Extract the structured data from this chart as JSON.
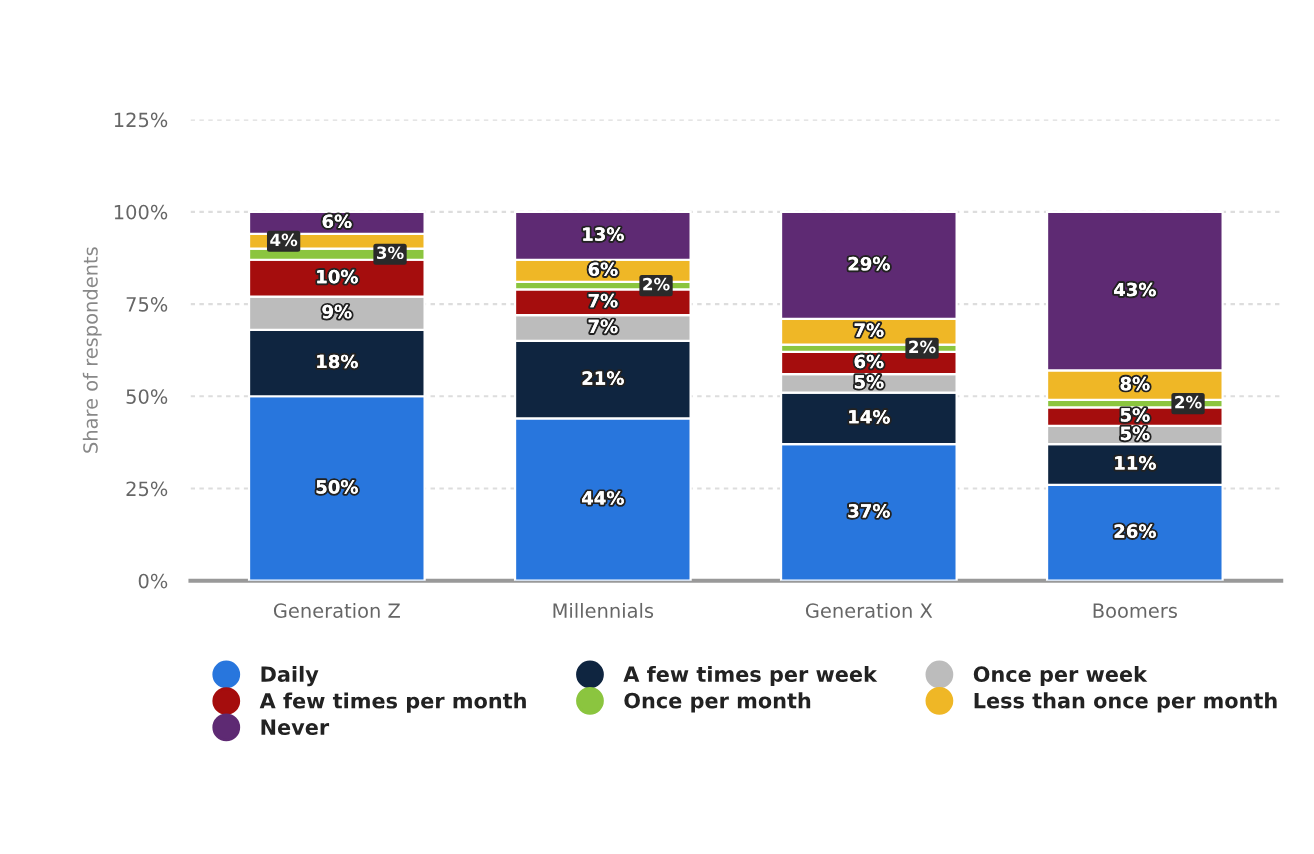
{
  "chart_data": {
    "type": "bar",
    "stacked": true,
    "ylabel": "Share of respondents",
    "categories": [
      "Generation Z",
      "Millennials",
      "Generation X",
      "Boomers"
    ],
    "series": [
      {
        "name": "Daily",
        "color": "#2876dd",
        "values": [
          50,
          44,
          37,
          26
        ],
        "value_labels": [
          "50%",
          "44%",
          "37%",
          "26%"
        ]
      },
      {
        "name": "A few times per week",
        "color": "#0f2540",
        "values": [
          18,
          21,
          14,
          11
        ],
        "value_labels": [
          "18%",
          "21%",
          "14%",
          "11%"
        ]
      },
      {
        "name": "Once per week",
        "color": "#bcbcbc",
        "values": [
          9,
          7,
          5,
          5
        ],
        "value_labels": [
          "9%",
          "7%",
          "5%",
          "5%"
        ]
      },
      {
        "name": "A few times per month",
        "color": "#a50d0d",
        "values": [
          10,
          7,
          6,
          5
        ],
        "value_labels": [
          "10%",
          "7%",
          "6%",
          "5%"
        ]
      },
      {
        "name": "Once per month",
        "color": "#8bc53f",
        "values": [
          3,
          2,
          2,
          2
        ],
        "value_labels": [
          "3%",
          "2%",
          "2%",
          "2%"
        ]
      },
      {
        "name": "Less than once per month",
        "color": "#efb726",
        "values": [
          4,
          6,
          7,
          8
        ],
        "value_labels": [
          "4%",
          "6%",
          "7%",
          "8%"
        ]
      },
      {
        "name": "Never",
        "color": "#5e2a73",
        "values": [
          6,
          13,
          29,
          43
        ],
        "value_labels": [
          "6%",
          "13%",
          "29%",
          "43%"
        ]
      }
    ],
    "ylim": [
      0,
      125
    ],
    "yticks": [
      {
        "value": 0,
        "label": "0%"
      },
      {
        "value": 25,
        "label": "25%"
      },
      {
        "value": 50,
        "label": "50%"
      },
      {
        "value": 75,
        "label": "75%"
      },
      {
        "value": 100,
        "label": "100%"
      },
      {
        "value": 125,
        "label": "125%"
      }
    ],
    "grid": "y",
    "legend": "bottom"
  }
}
